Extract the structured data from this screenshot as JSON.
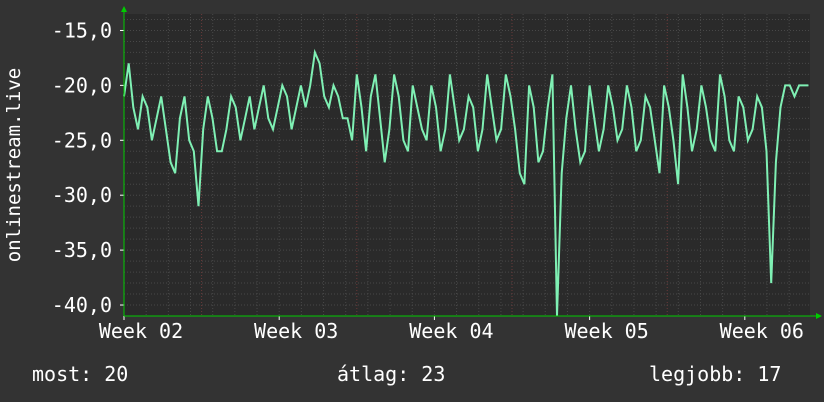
{
  "colors": {
    "background": "#333333",
    "plot_background": "#2a2a2a",
    "grid_minor": "#484848",
    "grid_major_vertical": "#6a3a3a",
    "line": "#7ff0b4",
    "axis_arrow": "#00cc00",
    "text": "#ffffff"
  },
  "stats": {
    "now": "most: 20",
    "average": "átlag: 23",
    "best": "legjobb: 17"
  },
  "chart_data": {
    "type": "line",
    "title": "",
    "xlabel": "",
    "ylabel": "onlinestream.live",
    "x_tick_labels": [
      "Week 02",
      "Week 03",
      "Week 04",
      "Week 05",
      "Week 06"
    ],
    "y_tick_labels": [
      "-15,0",
      "-20,0",
      "-25,0",
      "-30,0",
      "-35,0",
      "-40,0"
    ],
    "y_ticks": [
      -15,
      -20,
      -25,
      -30,
      -35,
      -40
    ],
    "ylim": [
      -41,
      -13.5
    ],
    "xlim": [
      0,
      4.42
    ],
    "grid": true,
    "series": [
      {
        "x": [
          0,
          0.03,
          0.06,
          0.09,
          0.12,
          0.15,
          0.18,
          0.21,
          0.24,
          0.27,
          0.3,
          0.33,
          0.36,
          0.39,
          0.42,
          0.45,
          0.48,
          0.51,
          0.54,
          0.57,
          0.6,
          0.63,
          0.66,
          0.69,
          0.72,
          0.75,
          0.78,
          0.81,
          0.84,
          0.87,
          0.9,
          0.93,
          0.96,
          0.99,
          1.02,
          1.05,
          1.08,
          1.11,
          1.14,
          1.17,
          1.2,
          1.23,
          1.26,
          1.29,
          1.32,
          1.35,
          1.38,
          1.41,
          1.44,
          1.47,
          1.5,
          1.53,
          1.56,
          1.59,
          1.62,
          1.65,
          1.68,
          1.71,
          1.74,
          1.77,
          1.8,
          1.83,
          1.86,
          1.89,
          1.92,
          1.95,
          1.98,
          2.01,
          2.04,
          2.07,
          2.1,
          2.13,
          2.16,
          2.19,
          2.22,
          2.25,
          2.28,
          2.31,
          2.34,
          2.37,
          2.4,
          2.43,
          2.46,
          2.49,
          2.52,
          2.55,
          2.58,
          2.61,
          2.64,
          2.67,
          2.7,
          2.73,
          2.76,
          2.79,
          2.82,
          2.85,
          2.88,
          2.91,
          2.94,
          2.97,
          3.0,
          3.03,
          3.06,
          3.09,
          3.12,
          3.15,
          3.18,
          3.21,
          3.24,
          3.27,
          3.3,
          3.33,
          3.36,
          3.39,
          3.42,
          3.45,
          3.48,
          3.51,
          3.54,
          3.57,
          3.6,
          3.63,
          3.66,
          3.69,
          3.72,
          3.75,
          3.78,
          3.81,
          3.84,
          3.87,
          3.9,
          3.93,
          3.96,
          3.99,
          4.02,
          4.05,
          4.08,
          4.11,
          4.14,
          4.17,
          4.2,
          4.23,
          4.26,
          4.29,
          4.32,
          4.35,
          4.38,
          4.41
        ],
        "values": [
          -21,
          -18,
          -22,
          -24,
          -21,
          -22,
          -25,
          -23,
          -21,
          -24,
          -27,
          -28,
          -23,
          -21,
          -25,
          -26,
          -31,
          -24,
          -21,
          -23,
          -26,
          -26,
          -24,
          -21,
          -22,
          -25,
          -23,
          -21,
          -24,
          -22,
          -20,
          -23,
          -24,
          -22,
          -20,
          -21,
          -24,
          -22,
          -20,
          -22,
          -20,
          -17,
          -18,
          -21,
          -22,
          -20,
          -21,
          -23,
          -23,
          -25,
          -19,
          -22,
          -26,
          -21,
          -19,
          -23,
          -27,
          -24,
          -19,
          -21,
          -25,
          -26,
          -20,
          -22,
          -24,
          -25,
          -20,
          -22,
          -26,
          -24,
          -19,
          -22,
          -25,
          -24,
          -21,
          -22,
          -26,
          -24,
          -19,
          -22,
          -25,
          -24,
          -19,
          -21,
          -24,
          -28,
          -29,
          -20,
          -22,
          -27,
          -26,
          -22,
          -19,
          -41,
          -28,
          -23,
          -20,
          -24,
          -27,
          -26,
          -20,
          -23,
          -26,
          -24,
          -20,
          -22,
          -25,
          -24,
          -20,
          -22,
          -26,
          -25,
          -21,
          -22,
          -25,
          -28,
          -20,
          -22,
          -25,
          -29,
          -19,
          -22,
          -26,
          -24,
          -20,
          -22,
          -25,
          -26,
          -19,
          -21,
          -25,
          -26,
          -21,
          -22,
          -25,
          -24,
          -21,
          -22,
          -26,
          -38,
          -27,
          -22,
          -20,
          -20,
          -21,
          -20,
          -20,
          -20
        ]
      }
    ]
  }
}
